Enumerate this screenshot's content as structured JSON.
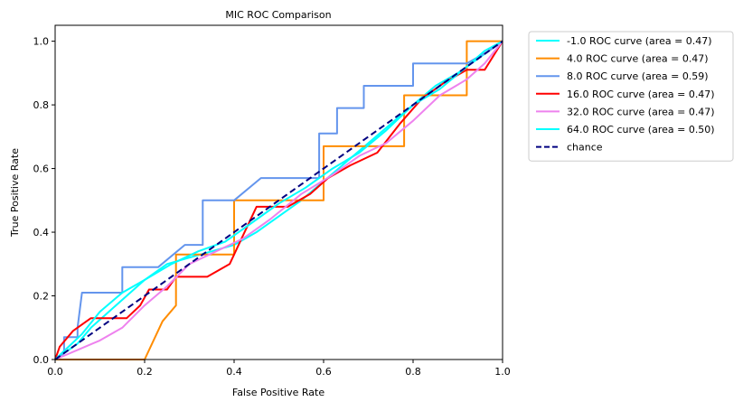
{
  "chart_data": {
    "type": "line",
    "title": "MIC ROC Comparison",
    "xlabel": "False Positive Rate",
    "ylabel": "True Positive Rate",
    "xlim": [
      0.0,
      1.0
    ],
    "ylim": [
      0.0,
      1.05
    ],
    "xticks": [
      "0.0",
      "0.2",
      "0.4",
      "0.6",
      "0.8",
      "1.0"
    ],
    "yticks": [
      "0.0",
      "0.2",
      "0.4",
      "0.6",
      "0.8",
      "1.0"
    ],
    "grid": false,
    "legend_position": "outside-top-right",
    "series": [
      {
        "name": "-1.0 ROC curve (area = 0.47)",
        "color": "#00ffff",
        "points": [
          [
            0,
            0
          ],
          [
            0.02,
            0.02
          ],
          [
            0.05,
            0.05
          ],
          [
            0.08,
            0.1
          ],
          [
            0.12,
            0.15
          ],
          [
            0.16,
            0.2
          ],
          [
            0.2,
            0.25
          ],
          [
            0.25,
            0.3
          ],
          [
            0.3,
            0.32
          ],
          [
            0.35,
            0.34
          ],
          [
            0.4,
            0.36
          ],
          [
            0.45,
            0.4
          ],
          [
            0.5,
            0.45
          ],
          [
            0.55,
            0.5
          ],
          [
            0.6,
            0.56
          ],
          [
            0.65,
            0.62
          ],
          [
            0.7,
            0.68
          ],
          [
            0.75,
            0.74
          ],
          [
            0.8,
            0.8
          ],
          [
            0.85,
            0.86
          ],
          [
            0.9,
            0.9
          ],
          [
            0.95,
            0.95
          ],
          [
            1.0,
            1.0
          ]
        ]
      },
      {
        "name": "4.0 ROC curve (area = 0.47)",
        "color": "#ff8c00",
        "points": [
          [
            0,
            0
          ],
          [
            0.2,
            0
          ],
          [
            0.24,
            0.12
          ],
          [
            0.27,
            0.17
          ],
          [
            0.27,
            0.33
          ],
          [
            0.4,
            0.33
          ],
          [
            0.4,
            0.5
          ],
          [
            0.6,
            0.5
          ],
          [
            0.6,
            0.67
          ],
          [
            0.78,
            0.67
          ],
          [
            0.78,
            0.83
          ],
          [
            0.92,
            0.83
          ],
          [
            0.92,
            1.0
          ],
          [
            1.0,
            1.0
          ]
        ]
      },
      {
        "name": "8.0 ROC curve (area = 0.59)",
        "color": "#6495ed",
        "points": [
          [
            0,
            0
          ],
          [
            0.02,
            0.02
          ],
          [
            0.02,
            0.07
          ],
          [
            0.05,
            0.07
          ],
          [
            0.05,
            0.1
          ],
          [
            0.06,
            0.21
          ],
          [
            0.15,
            0.21
          ],
          [
            0.15,
            0.29
          ],
          [
            0.23,
            0.29
          ],
          [
            0.29,
            0.36
          ],
          [
            0.33,
            0.36
          ],
          [
            0.33,
            0.5
          ],
          [
            0.4,
            0.5
          ],
          [
            0.46,
            0.57
          ],
          [
            0.59,
            0.57
          ],
          [
            0.59,
            0.71
          ],
          [
            0.63,
            0.71
          ],
          [
            0.63,
            0.79
          ],
          [
            0.69,
            0.79
          ],
          [
            0.69,
            0.86
          ],
          [
            0.8,
            0.86
          ],
          [
            0.8,
            0.93
          ],
          [
            0.92,
            0.93
          ],
          [
            0.97,
            0.97
          ],
          [
            1.0,
            1.0
          ]
        ]
      },
      {
        "name": "16.0 ROC curve (area = 0.47)",
        "color": "#ff0000",
        "points": [
          [
            0,
            0
          ],
          [
            0.01,
            0.04
          ],
          [
            0.04,
            0.09
          ],
          [
            0.08,
            0.13
          ],
          [
            0.12,
            0.13
          ],
          [
            0.16,
            0.13
          ],
          [
            0.19,
            0.17
          ],
          [
            0.21,
            0.22
          ],
          [
            0.25,
            0.22
          ],
          [
            0.27,
            0.26
          ],
          [
            0.34,
            0.26
          ],
          [
            0.39,
            0.3
          ],
          [
            0.42,
            0.39
          ],
          [
            0.45,
            0.48
          ],
          [
            0.52,
            0.48
          ],
          [
            0.57,
            0.52
          ],
          [
            0.61,
            0.57
          ],
          [
            0.66,
            0.61
          ],
          [
            0.72,
            0.65
          ],
          [
            0.77,
            0.74
          ],
          [
            0.82,
            0.82
          ],
          [
            0.87,
            0.87
          ],
          [
            0.92,
            0.91
          ],
          [
            0.96,
            0.91
          ],
          [
            1.0,
            1.0
          ]
        ]
      },
      {
        "name": "32.0 ROC curve (area = 0.47)",
        "color": "#ee82ee",
        "points": [
          [
            0,
            0
          ],
          [
            0.05,
            0.03
          ],
          [
            0.1,
            0.06
          ],
          [
            0.15,
            0.1
          ],
          [
            0.2,
            0.17
          ],
          [
            0.25,
            0.23
          ],
          [
            0.3,
            0.3
          ],
          [
            0.36,
            0.34
          ],
          [
            0.42,
            0.38
          ],
          [
            0.48,
            0.44
          ],
          [
            0.55,
            0.52
          ],
          [
            0.62,
            0.58
          ],
          [
            0.68,
            0.64
          ],
          [
            0.74,
            0.68
          ],
          [
            0.8,
            0.75
          ],
          [
            0.86,
            0.83
          ],
          [
            0.92,
            0.88
          ],
          [
            0.96,
            0.93
          ],
          [
            1.0,
            1.0
          ]
        ]
      },
      {
        "name": "64.0 ROC curve (area = 0.50)",
        "color": "#00ffff",
        "points": [
          [
            0,
            0
          ],
          [
            0.03,
            0.04
          ],
          [
            0.06,
            0.08
          ],
          [
            0.1,
            0.15
          ],
          [
            0.15,
            0.21
          ],
          [
            0.2,
            0.25
          ],
          [
            0.26,
            0.3
          ],
          [
            0.32,
            0.34
          ],
          [
            0.38,
            0.37
          ],
          [
            0.44,
            0.43
          ],
          [
            0.5,
            0.49
          ],
          [
            0.56,
            0.54
          ],
          [
            0.62,
            0.6
          ],
          [
            0.68,
            0.65
          ],
          [
            0.74,
            0.72
          ],
          [
            0.8,
            0.8
          ],
          [
            0.86,
            0.85
          ],
          [
            0.92,
            0.92
          ],
          [
            0.96,
            0.97
          ],
          [
            1.0,
            1.0
          ]
        ]
      },
      {
        "name": "chance",
        "color": "#000080",
        "dashed": true,
        "points": [
          [
            0,
            0
          ],
          [
            1,
            1
          ]
        ]
      }
    ]
  }
}
